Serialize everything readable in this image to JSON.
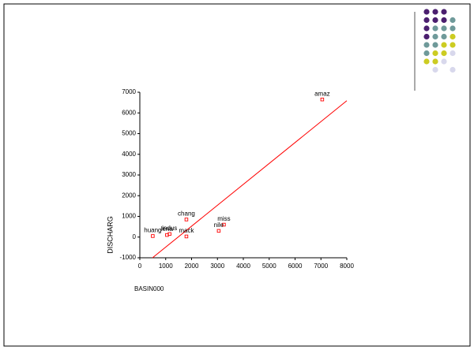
{
  "chart_data": {
    "type": "scatter",
    "x_label": "BASIN000",
    "y_label": "DISCHARG",
    "xlim": [
      0,
      8000
    ],
    "ylim": [
      -1000,
      7000
    ],
    "xticks": [
      0,
      1000,
      2000,
      3000,
      4000,
      5000,
      6000,
      7000,
      8000
    ],
    "yticks": [
      -1000,
      0,
      1000,
      2000,
      3000,
      4000,
      5000,
      6000,
      7000
    ],
    "color": "#ff0000",
    "labels": [
      "amaz",
      "chang",
      "miss",
      "nile",
      "mack",
      "huang",
      "lena",
      "indus"
    ],
    "x": [
      7050,
      1800,
      3250,
      3050,
      1800,
      500,
      1050,
      1150
    ],
    "y": [
      6650,
      850,
      600,
      300,
      30,
      50,
      100,
      150
    ],
    "fit_line": {
      "x": [
        490,
        8000
      ],
      "y": [
        -1000,
        6590
      ],
      "color": "#ff0000"
    }
  }
}
